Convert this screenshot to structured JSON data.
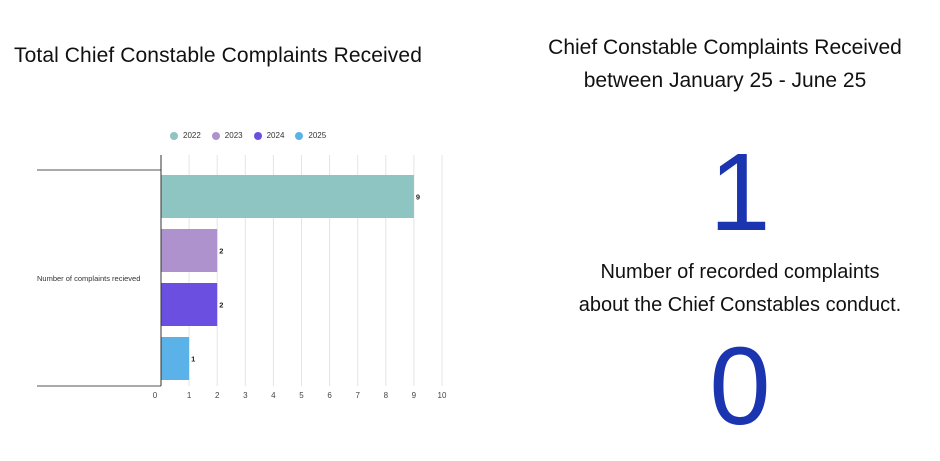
{
  "left": {
    "title": "Total Chief Constable Complaints Received"
  },
  "right": {
    "title_line1": "Chief Constable Complaints Received",
    "title_line2": "between January 25 - June 25",
    "number1": "1",
    "subtitle_line1": "Number of recorded complaints",
    "subtitle_line2": "about the Chief Constables conduct.",
    "number2": "0",
    "number_color": "#1b34b0"
  },
  "chart_data": {
    "type": "bar",
    "orientation": "horizontal",
    "title": "Total Chief Constable Complaints Received",
    "category": "Number of complaints recieved",
    "series": [
      {
        "name": "2022",
        "value": 9,
        "color": "#8ec4c2"
      },
      {
        "name": "2023",
        "value": 2,
        "color": "#ae92cd"
      },
      {
        "name": "2024",
        "value": 2,
        "color": "#6a4fe0"
      },
      {
        "name": "2025",
        "value": 1,
        "color": "#5ab2e8"
      }
    ],
    "xlim": [
      0,
      10
    ],
    "xticks": [
      0,
      1,
      2,
      3,
      4,
      5,
      6,
      7,
      8,
      9,
      10
    ],
    "legend_position": "top",
    "grid": true
  }
}
